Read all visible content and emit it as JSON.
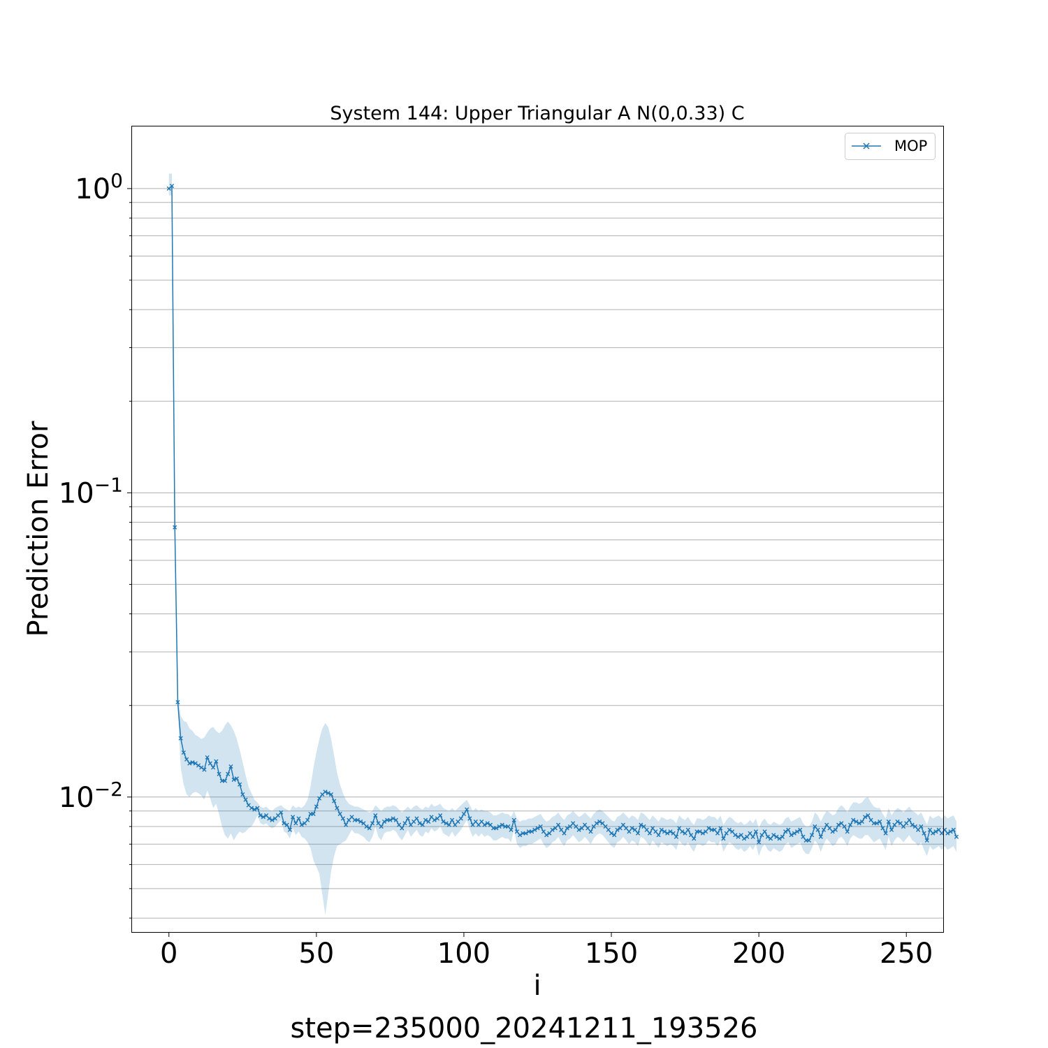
{
  "chart_data": {
    "type": "line",
    "title": "System 144: Upper Triangular A N(0,0.33) C",
    "xlabel": "i",
    "ylabel": "Prediction Error",
    "footer": "step=235000_20241211_193526",
    "xlim": [
      -12.5,
      262.5
    ],
    "ylim": [
      0.0036,
      1.6
    ],
    "yscale": "log",
    "x_ticks": [
      0,
      50,
      100,
      150,
      200,
      250
    ],
    "y_ticks": [
      {
        "value": 1,
        "base": "10",
        "exp": "0"
      },
      {
        "value": 0.1,
        "base": "10",
        "exp": "−1"
      },
      {
        "value": 0.01,
        "base": "10",
        "exp": "−2"
      }
    ],
    "grid": "y-major-and-minor",
    "legend_position": "top-right",
    "colors": {
      "line": "#1f77b4",
      "band": "#1f77b4",
      "grid": "#b0b0b0"
    },
    "series": [
      {
        "name": "MOP",
        "marker": "x",
        "x_start": 0,
        "x_step": 1,
        "values": [
          1.0,
          1.02,
          0.077,
          0.0205,
          0.0156,
          0.014,
          0.0133,
          0.0129,
          0.013,
          0.0129,
          0.0127,
          0.0125,
          0.0123,
          0.0135,
          0.0129,
          0.0125,
          0.0131,
          0.0119,
          0.0113,
          0.0113,
          0.0119,
          0.0126,
          0.0114,
          0.0115,
          0.011,
          0.0102,
          0.0098,
          0.0094,
          0.0092,
          0.0091,
          0.0092,
          0.0087,
          0.0086,
          0.0087,
          0.0085,
          0.0084,
          0.0085,
          0.0087,
          0.0089,
          0.0082,
          0.0081,
          0.0078,
          0.0086,
          0.0082,
          0.0085,
          0.0081,
          0.0082,
          0.0084,
          0.0088,
          0.0088,
          0.0093,
          0.0099,
          0.0102,
          0.0104,
          0.0103,
          0.0102,
          0.0097,
          0.0092,
          0.0088,
          0.0085,
          0.0081,
          0.0084,
          0.0086,
          0.0084,
          0.0084,
          0.0083,
          0.0082,
          0.008,
          0.0079,
          0.0082,
          0.0087,
          0.0082,
          0.008,
          0.0083,
          0.0084,
          0.0084,
          0.0085,
          0.0084,
          0.0081,
          0.0079,
          0.0082,
          0.0085,
          0.0081,
          0.0083,
          0.0085,
          0.0082,
          0.0081,
          0.0084,
          0.0083,
          0.0086,
          0.0084,
          0.0085,
          0.0087,
          0.0083,
          0.0082,
          0.0081,
          0.0084,
          0.0081,
          0.0083,
          0.0085,
          0.0088,
          0.0091,
          0.0085,
          0.0081,
          0.0083,
          0.0081,
          0.0083,
          0.0081,
          0.0082,
          0.0081,
          0.0079,
          0.0079,
          0.008,
          0.0081,
          0.008,
          0.008,
          0.0078,
          0.0084,
          0.0077,
          0.0075,
          0.0076,
          0.0076,
          0.0077,
          0.0077,
          0.0078,
          0.0079,
          0.008,
          0.0077,
          0.0075,
          0.0076,
          0.0078,
          0.0079,
          0.0081,
          0.0078,
          0.0076,
          0.0079,
          0.008,
          0.0082,
          0.008,
          0.0078,
          0.0079,
          0.0081,
          0.0079,
          0.0077,
          0.008,
          0.0082,
          0.0083,
          0.0082,
          0.008,
          0.0078,
          0.0076,
          0.0075,
          0.0078,
          0.0079,
          0.0081,
          0.0079,
          0.0077,
          0.0079,
          0.0078,
          0.0076,
          0.0081,
          0.008,
          0.0078,
          0.0076,
          0.0079,
          0.0077,
          0.0075,
          0.0078,
          0.0077,
          0.0076,
          0.0077,
          0.0076,
          0.0074,
          0.0079,
          0.0077,
          0.0076,
          0.0078,
          0.0075,
          0.0073,
          0.0077,
          0.0077,
          0.0076,
          0.0077,
          0.0079,
          0.0078,
          0.0078,
          0.0076,
          0.0079,
          0.0073,
          0.0076,
          0.0078,
          0.0077,
          0.0075,
          0.0074,
          0.0075,
          0.0073,
          0.0074,
          0.0076,
          0.0074,
          0.0077,
          0.0071,
          0.0075,
          0.0077,
          0.0074,
          0.0073,
          0.0075,
          0.0074,
          0.0073,
          0.0074,
          0.0077,
          0.0078,
          0.0075,
          0.0076,
          0.0077,
          0.0078,
          0.0074,
          0.0072,
          0.0072,
          0.0075,
          0.008,
          0.0078,
          0.0074,
          0.0078,
          0.0081,
          0.0079,
          0.0077,
          0.0078,
          0.0081,
          0.0082,
          0.008,
          0.0077,
          0.0081,
          0.0084,
          0.0083,
          0.0082,
          0.0083,
          0.0086,
          0.0087,
          0.0084,
          0.0082,
          0.0082,
          0.0083,
          0.0079,
          0.0076,
          0.0083,
          0.0078,
          0.0081,
          0.0083,
          0.0082,
          0.008,
          0.0082,
          0.0084,
          0.0081,
          0.008,
          0.0078,
          0.008,
          0.0076,
          0.0072,
          0.0078,
          0.0076,
          0.0077,
          0.0078,
          0.0076,
          0.0078,
          0.0076,
          0.0077,
          0.0078,
          0.0074
        ],
        "band_upper": [
          1.12,
          1.12,
          0.08,
          0.0215,
          0.0185,
          0.0178,
          0.0176,
          0.0168,
          0.0165,
          0.016,
          0.0158,
          0.0155,
          0.0157,
          0.0163,
          0.0168,
          0.017,
          0.0165,
          0.0162,
          0.0165,
          0.0172,
          0.0177,
          0.0172,
          0.0165,
          0.0155,
          0.0143,
          0.013,
          0.0118,
          0.0108,
          0.0103,
          0.0098,
          0.0096,
          0.0093,
          0.0092,
          0.0093,
          0.0091,
          0.009,
          0.0092,
          0.0093,
          0.0094,
          0.0092,
          0.0091,
          0.009,
          0.0094,
          0.0092,
          0.0093,
          0.0092,
          0.0094,
          0.0098,
          0.0108,
          0.0125,
          0.014,
          0.0155,
          0.0168,
          0.0175,
          0.017,
          0.0155,
          0.0137,
          0.012,
          0.011,
          0.0103,
          0.0098,
          0.0095,
          0.0094,
          0.0093,
          0.0093,
          0.0092,
          0.0091,
          0.009,
          0.0089,
          0.009,
          0.0094,
          0.0092,
          0.009,
          0.0092,
          0.0093,
          0.0093,
          0.0094,
          0.0093,
          0.0091,
          0.0089,
          0.0091,
          0.0093,
          0.0091,
          0.0093,
          0.0094,
          0.0092,
          0.0091,
          0.0093,
          0.0092,
          0.0095,
          0.0093,
          0.0094,
          0.0095,
          0.0092,
          0.0091,
          0.009,
          0.0092,
          0.009,
          0.0092,
          0.0094,
          0.0096,
          0.0098,
          0.0094,
          0.009,
          0.0092,
          0.009,
          0.0091,
          0.009,
          0.009,
          0.0089,
          0.0087,
          0.0087,
          0.0088,
          0.0089,
          0.0088,
          0.0088,
          0.0086,
          0.009,
          0.0085,
          0.0083,
          0.0084,
          0.0084,
          0.0085,
          0.0085,
          0.0086,
          0.0087,
          0.0088,
          0.0085,
          0.0083,
          0.0084,
          0.0086,
          0.0087,
          0.0089,
          0.0086,
          0.0084,
          0.0087,
          0.0088,
          0.009,
          0.0088,
          0.0086,
          0.0087,
          0.0089,
          0.0087,
          0.0085,
          0.0088,
          0.009,
          0.0091,
          0.009,
          0.0088,
          0.0086,
          0.0084,
          0.0083,
          0.0086,
          0.0087,
          0.0089,
          0.0087,
          0.0085,
          0.0087,
          0.0086,
          0.0084,
          0.0089,
          0.0088,
          0.0086,
          0.0084,
          0.0087,
          0.0085,
          0.0083,
          0.0086,
          0.0085,
          0.0084,
          0.0085,
          0.0084,
          0.0082,
          0.0087,
          0.0085,
          0.0084,
          0.0086,
          0.0083,
          0.0081,
          0.0085,
          0.0085,
          0.0084,
          0.0085,
          0.0087,
          0.0086,
          0.0086,
          0.0084,
          0.0087,
          0.0081,
          0.0084,
          0.0086,
          0.0085,
          0.0083,
          0.0082,
          0.0083,
          0.0081,
          0.0082,
          0.0084,
          0.0082,
          0.0085,
          0.0079,
          0.0083,
          0.0085,
          0.0082,
          0.0081,
          0.0083,
          0.0082,
          0.0081,
          0.0082,
          0.0085,
          0.0086,
          0.0083,
          0.0084,
          0.0085,
          0.0086,
          0.0082,
          0.008,
          0.008,
          0.0083,
          0.0089,
          0.0087,
          0.0083,
          0.0087,
          0.009,
          0.0089,
          0.0087,
          0.0088,
          0.0092,
          0.0094,
          0.0092,
          0.0089,
          0.0093,
          0.0096,
          0.0096,
          0.0095,
          0.0096,
          0.0099,
          0.01,
          0.0096,
          0.0093,
          0.0092,
          0.0092,
          0.0088,
          0.0085,
          0.0092,
          0.0087,
          0.009,
          0.0092,
          0.0091,
          0.0089,
          0.0091,
          0.0093,
          0.009,
          0.0089,
          0.0087,
          0.0089,
          0.0085,
          0.0081,
          0.0087,
          0.0085,
          0.0086,
          0.0087,
          0.0085,
          0.0087,
          0.0085,
          0.0086,
          0.0087,
          0.0083
        ],
        "band_lower": [
          0.95,
          0.95,
          0.074,
          0.0195,
          0.0125,
          0.011,
          0.0102,
          0.01,
          0.0103,
          0.0104,
          0.0103,
          0.0101,
          0.0098,
          0.0105,
          0.0099,
          0.0092,
          0.0095,
          0.0088,
          0.008,
          0.0075,
          0.0073,
          0.0076,
          0.0072,
          0.0075,
          0.0077,
          0.0076,
          0.0077,
          0.0079,
          0.008,
          0.0083,
          0.0087,
          0.0082,
          0.0081,
          0.0082,
          0.008,
          0.0079,
          0.008,
          0.0082,
          0.0084,
          0.0077,
          0.0076,
          0.0073,
          0.0079,
          0.0075,
          0.0077,
          0.0074,
          0.0073,
          0.0071,
          0.0068,
          0.0062,
          0.0059,
          0.0056,
          0.0048,
          0.0041,
          0.0048,
          0.0057,
          0.0064,
          0.0069,
          0.007,
          0.0071,
          0.0072,
          0.0075,
          0.0078,
          0.0076,
          0.0076,
          0.0075,
          0.0074,
          0.0072,
          0.0071,
          0.0074,
          0.008,
          0.0074,
          0.0072,
          0.0076,
          0.0077,
          0.0077,
          0.0078,
          0.0077,
          0.0074,
          0.0072,
          0.0075,
          0.0078,
          0.0074,
          0.0076,
          0.0078,
          0.0075,
          0.0074,
          0.0077,
          0.0076,
          0.0079,
          0.0077,
          0.0078,
          0.008,
          0.0076,
          0.0075,
          0.0074,
          0.0077,
          0.0074,
          0.0076,
          0.0078,
          0.0081,
          0.0084,
          0.0078,
          0.0074,
          0.0076,
          0.0074,
          0.0076,
          0.0074,
          0.0075,
          0.0074,
          0.0072,
          0.0072,
          0.0073,
          0.0074,
          0.0073,
          0.0073,
          0.0071,
          0.0078,
          0.007,
          0.0068,
          0.0069,
          0.0069,
          0.007,
          0.007,
          0.0071,
          0.0072,
          0.0073,
          0.007,
          0.0068,
          0.0069,
          0.0071,
          0.0072,
          0.0074,
          0.0071,
          0.0069,
          0.0072,
          0.0073,
          0.0075,
          0.0073,
          0.0071,
          0.0072,
          0.0074,
          0.0072,
          0.007,
          0.0073,
          0.0075,
          0.0076,
          0.0075,
          0.0073,
          0.0071,
          0.0069,
          0.0068,
          0.0071,
          0.0072,
          0.0074,
          0.0072,
          0.007,
          0.0072,
          0.0071,
          0.0069,
          0.0074,
          0.0073,
          0.0071,
          0.0069,
          0.0072,
          0.007,
          0.0068,
          0.0071,
          0.007,
          0.0069,
          0.007,
          0.0069,
          0.0067,
          0.0072,
          0.007,
          0.0069,
          0.0071,
          0.0068,
          0.0066,
          0.007,
          0.007,
          0.0069,
          0.007,
          0.0072,
          0.0071,
          0.0071,
          0.0069,
          0.0072,
          0.0066,
          0.0069,
          0.0071,
          0.007,
          0.0068,
          0.0067,
          0.0068,
          0.0066,
          0.0067,
          0.0069,
          0.0067,
          0.007,
          0.0064,
          0.0068,
          0.007,
          0.0067,
          0.0066,
          0.0068,
          0.0067,
          0.0066,
          0.0067,
          0.007,
          0.0071,
          0.0068,
          0.0069,
          0.007,
          0.0071,
          0.0067,
          0.0065,
          0.0065,
          0.0068,
          0.0072,
          0.007,
          0.0066,
          0.007,
          0.0073,
          0.0071,
          0.0069,
          0.007,
          0.0073,
          0.0074,
          0.0072,
          0.0069,
          0.0073,
          0.0075,
          0.0074,
          0.0073,
          0.0073,
          0.0075,
          0.0075,
          0.0073,
          0.0071,
          0.0072,
          0.0073,
          0.007,
          0.0067,
          0.0074,
          0.0069,
          0.0072,
          0.0074,
          0.0073,
          0.0071,
          0.0073,
          0.0075,
          0.0072,
          0.0071,
          0.0069,
          0.0071,
          0.0067,
          0.0064,
          0.0069,
          0.0067,
          0.0068,
          0.0069,
          0.0067,
          0.0069,
          0.0067,
          0.0068,
          0.0069,
          0.0066
        ]
      }
    ]
  }
}
